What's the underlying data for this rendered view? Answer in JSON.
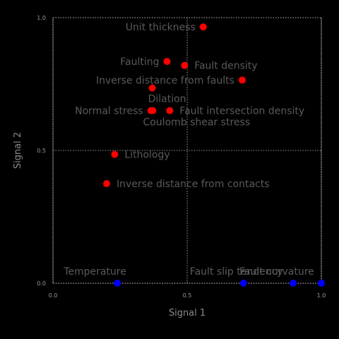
{
  "chart_data": {
    "type": "scatter",
    "title": "",
    "xlabel": "Signal 1",
    "ylabel": "Signal 2",
    "xlim": [
      0.0,
      1.0
    ],
    "ylim": [
      0.0,
      1.0
    ],
    "xticks": [
      "0.0",
      "0.5",
      "1.0"
    ],
    "yticks": [
      "0.0",
      "0.5",
      "1.0"
    ],
    "grid": true,
    "colors": {
      "group_a": "#ff0000",
      "group_b": "#0000ff"
    },
    "points": [
      {
        "label": "Unit thickness",
        "x": 0.56,
        "y": 0.965,
        "color": "#ff0000",
        "anchor": "left"
      },
      {
        "label": "Faulting",
        "x": 0.425,
        "y": 0.835,
        "color": "#ff0000",
        "anchor": "left"
      },
      {
        "label": "Fault density",
        "x": 0.49,
        "y": 0.82,
        "color": "#ff0000",
        "anchor": "right"
      },
      {
        "label": "Inverse distance from faults",
        "x": 0.705,
        "y": 0.765,
        "color": "#ff0000",
        "anchor": "left"
      },
      {
        "label": "Dilation",
        "x": 0.37,
        "y": 0.735,
        "color": "#ff0000",
        "anchor": "below"
      },
      {
        "label": "Normal stress",
        "x": 0.365,
        "y": 0.65,
        "color": "#ff0000",
        "anchor": "left"
      },
      {
        "label": "",
        "x": 0.372,
        "y": 0.65,
        "color": "#ff0000",
        "anchor": "none"
      },
      {
        "label": "Fault intersection density",
        "x": 0.435,
        "y": 0.65,
        "color": "#ff0000",
        "anchor": "right"
      },
      {
        "label": "Coulomb shear stress",
        "x": 0.435,
        "y": 0.65,
        "color": "#ff0000",
        "anchor": "below-only"
      },
      {
        "label": "Lithology",
        "x": 0.23,
        "y": 0.485,
        "color": "#ff0000",
        "anchor": "right"
      },
      {
        "label": "Inverse distance from contacts",
        "x": 0.2,
        "y": 0.375,
        "color": "#ff0000",
        "anchor": "right"
      },
      {
        "label": "Temperature",
        "x": 0.24,
        "y": 0.0,
        "color": "#0000ff",
        "anchor": "above-left"
      },
      {
        "label": "Fault slip tendency",
        "x": 0.71,
        "y": 0.0,
        "color": "#0000ff",
        "anchor": "above-left"
      },
      {
        "label": "Fault curvature",
        "x": 0.895,
        "y": 0.0,
        "color": "#0000ff",
        "anchor": "above-left"
      },
      {
        "label": "",
        "x": 1.0,
        "y": 0.0,
        "color": "#0000ff",
        "anchor": "none"
      }
    ]
  }
}
